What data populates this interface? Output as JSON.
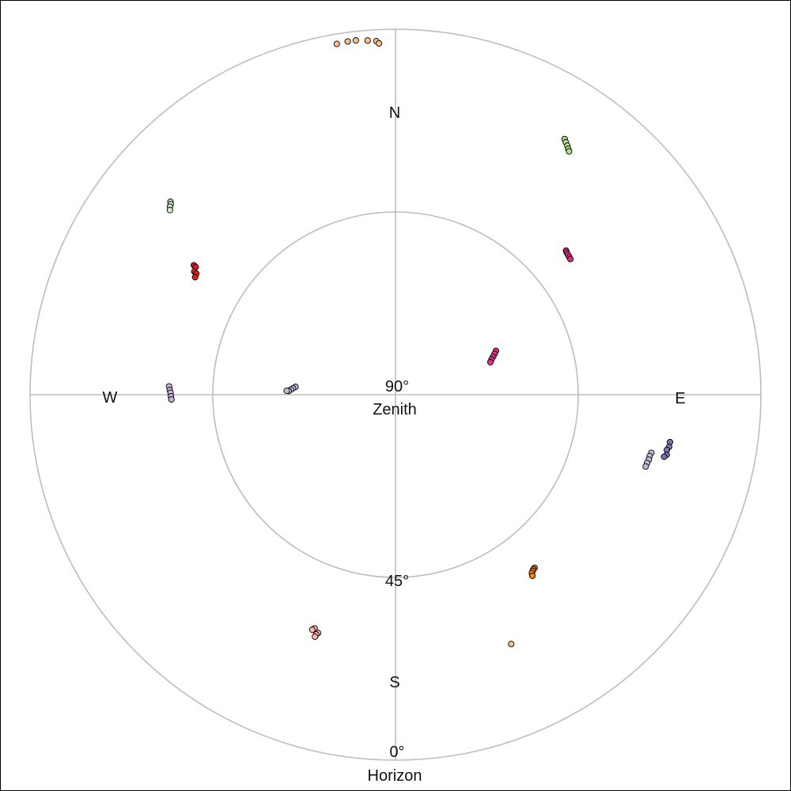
{
  "chart_data": {
    "type": "scatter",
    "projection": "polar-skyplot",
    "elevation_range": [
      0,
      90
    ],
    "elevation_rings": [
      0,
      45,
      90
    ],
    "grid": true,
    "labels": {
      "north": "N",
      "south": "S",
      "east": "E",
      "west": "W",
      "zenith_value": "90°",
      "zenith_text": "Zenith",
      "mid_value": "45°",
      "horizon_value": "0°",
      "horizon_text": "Horizon"
    },
    "series": [
      {
        "color": "#fdc086",
        "points": [
          [
            350.5,
            2.4
          ],
          [
            352.3,
            2.2
          ],
          [
            353.6,
            2.2
          ],
          [
            355.5,
            2.5
          ],
          [
            356.9,
            2.8
          ],
          [
            357.3,
            3.4
          ]
        ]
      },
      {
        "color": "#b2df8a",
        "points": [
          [
            33.5,
            14.5
          ],
          [
            34.0,
            15.0
          ],
          [
            34.6,
            15.5
          ],
          [
            35.1,
            16.0
          ],
          [
            35.5,
            16.4
          ]
        ]
      },
      {
        "color": "#ccebc5",
        "points": [
          [
            310.6,
            17.0
          ],
          [
            310.3,
            17.4
          ],
          [
            309.8,
            17.7
          ],
          [
            309.3,
            18.2
          ]
        ]
      },
      {
        "color": "#e7298a",
        "points": [
          [
            49.8,
            35.0
          ],
          [
            50.3,
            35.2
          ],
          [
            50.9,
            35.3
          ],
          [
            51.6,
            35.4
          ],
          [
            52.2,
            35.5
          ]
        ]
      },
      {
        "color": "#e41a1c",
        "points": [
          [
            302.7,
            31.0
          ],
          [
            302.6,
            31.6
          ],
          [
            301.5,
            31.9
          ],
          [
            301.3,
            32.6
          ],
          [
            300.4,
            32.8
          ]
        ]
      },
      {
        "color": "#e7298a",
        "points": [
          [
            66.4,
            63.0
          ],
          [
            67.6,
            63.6
          ],
          [
            68.7,
            64.2
          ],
          [
            69.8,
            64.8
          ],
          [
            71.1,
            65.3
          ]
        ]
      },
      {
        "color": "#cab2d6",
        "points": [
          [
            272.1,
            34.2
          ],
          [
            271.2,
            34.4
          ],
          [
            270.5,
            34.6
          ],
          [
            269.6,
            34.7
          ],
          [
            268.8,
            34.8
          ]
        ]
      },
      {
        "color": "#bcbddc",
        "points": [
          [
            274.5,
            65.3
          ],
          [
            273.6,
            64.7
          ],
          [
            272.8,
            64.2
          ],
          [
            272.0,
            63.7
          ],
          [
            272.1,
            63.2
          ]
        ]
      },
      {
        "color": "#bcbddc",
        "points": [
          [
            102.8,
            25.4
          ],
          [
            103.6,
            25.6
          ],
          [
            104.4,
            25.6
          ],
          [
            105.2,
            25.8
          ],
          [
            106.0,
            25.9
          ]
        ]
      },
      {
        "color": "#8073ac",
        "points": [
          [
            99.8,
            21.4
          ],
          [
            100.8,
            21.4
          ],
          [
            101.5,
            21.8
          ],
          [
            102.5,
            21.6
          ],
          [
            103.0,
            22.1
          ]
        ]
      },
      {
        "color": "#ff7f00",
        "points": [
          [
            141.2,
            35.3
          ],
          [
            141.7,
            35.2
          ],
          [
            142.1,
            35.0
          ],
          [
            142.6,
            34.7
          ],
          [
            142.9,
            34.1
          ]
        ]
      },
      {
        "color": "#fdc086",
        "points": [
          [
            155.1,
            22.3
          ]
        ]
      },
      {
        "color": "#fbb4ae",
        "points": [
          [
            199.1,
            29.1
          ],
          [
            199.5,
            28.6
          ],
          [
            198.0,
            28.3
          ],
          [
            198.3,
            27.8
          ],
          [
            198.4,
            27.2
          ]
        ]
      }
    ]
  }
}
